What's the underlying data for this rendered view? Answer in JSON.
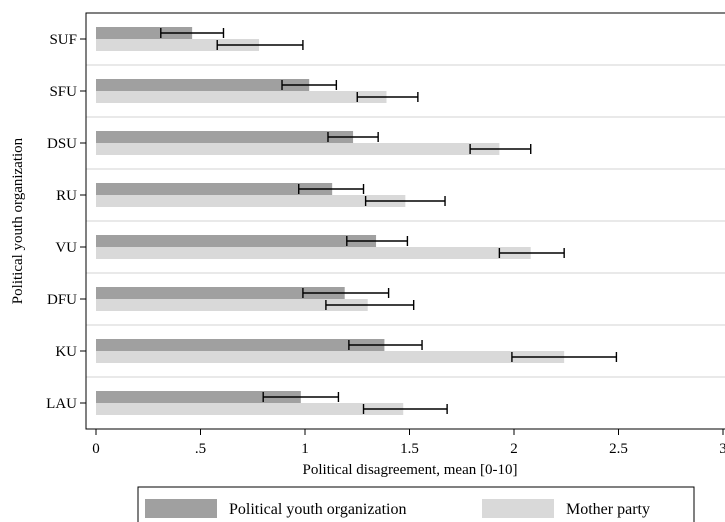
{
  "chart_data": {
    "type": "bar",
    "orientation": "horizontal",
    "xlabel": "Political disagreement, mean [0-10]",
    "ylabel": "Political youth organization",
    "xlim": [
      0,
      3
    ],
    "xticks": [
      0,
      0.5,
      1,
      1.5,
      2,
      2.5,
      3
    ],
    "xtick_labels": [
      "0",
      ".5",
      "1",
      "1.5",
      "2",
      "2.5",
      "3"
    ],
    "categories": [
      "SUF",
      "SFU",
      "DSU",
      "RU",
      "VU",
      "DFU",
      "KU",
      "LAU"
    ],
    "series": [
      {
        "name": "Political youth organization",
        "color": "#a0a0a0",
        "values": [
          0.46,
          1.02,
          1.23,
          1.13,
          1.34,
          1.19,
          1.38,
          0.98
        ],
        "ci_low": [
          0.31,
          0.89,
          1.11,
          0.97,
          1.2,
          0.99,
          1.21,
          0.8
        ],
        "ci_high": [
          0.61,
          1.15,
          1.35,
          1.28,
          1.49,
          1.4,
          1.56,
          1.16
        ]
      },
      {
        "name": "Mother party",
        "color": "#d9d9d9",
        "values": [
          0.78,
          1.39,
          1.93,
          1.48,
          2.08,
          1.3,
          2.24,
          1.47
        ],
        "ci_low": [
          0.58,
          1.25,
          1.79,
          1.29,
          1.93,
          1.1,
          1.99,
          1.28
        ],
        "ci_high": [
          0.99,
          1.54,
          2.08,
          1.67,
          2.24,
          1.52,
          2.49,
          1.68
        ]
      }
    ],
    "legend_position": "bottom",
    "grid": true
  }
}
